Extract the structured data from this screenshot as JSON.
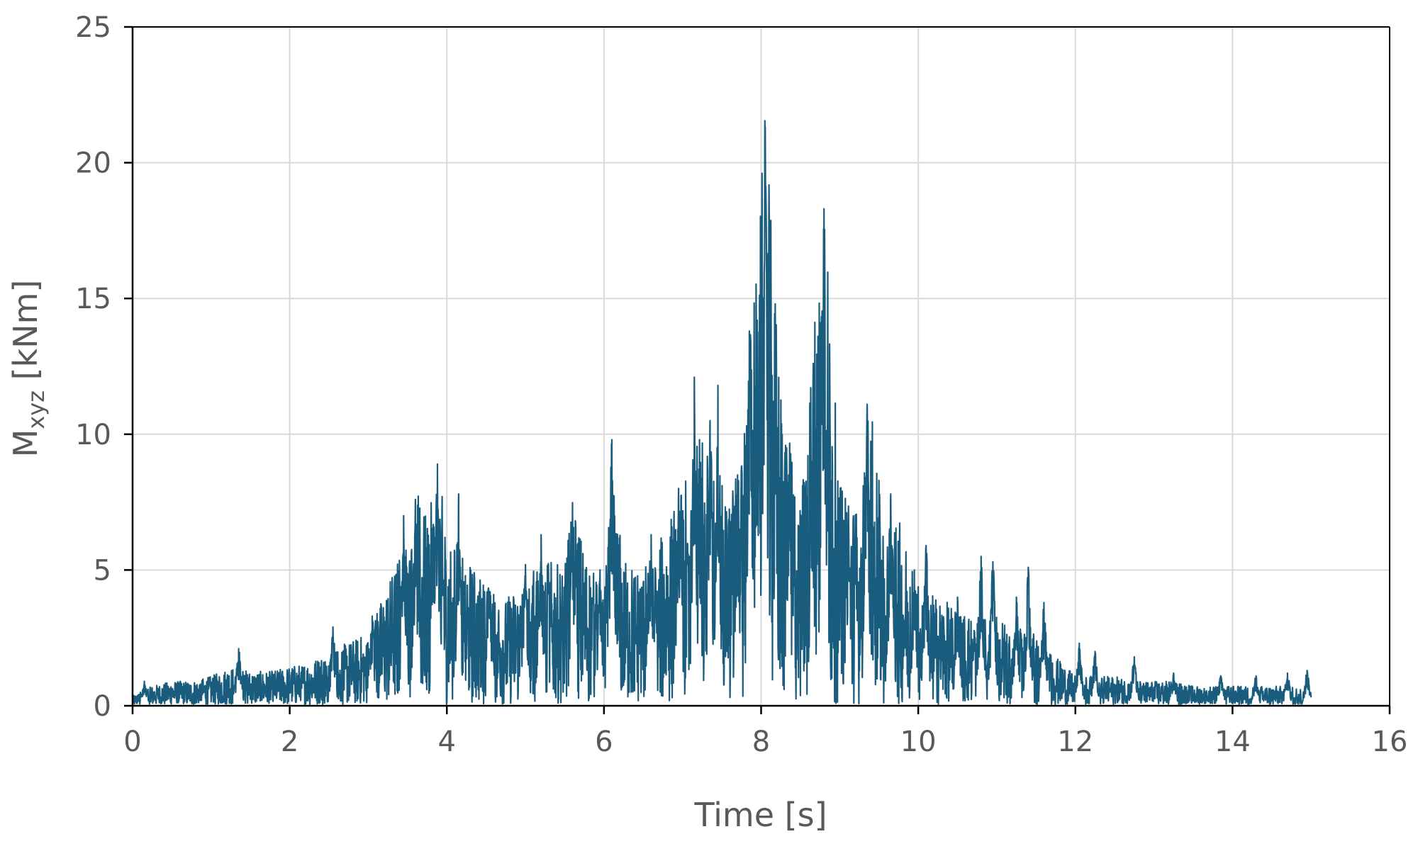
{
  "chart_data": {
    "type": "line",
    "title": "",
    "xlabel": "Time [s]",
    "ylabel": {
      "base": "M",
      "subscript": "xyz",
      "unit": " [kNm]"
    },
    "xlim": [
      0,
      16
    ],
    "ylim": [
      0,
      25
    ],
    "xticks": [
      0,
      2,
      4,
      6,
      8,
      10,
      12,
      14,
      16
    ],
    "yticks": [
      0,
      5,
      10,
      15,
      20,
      25
    ],
    "xtick_labels": [
      "0",
      "2",
      "4",
      "6",
      "8",
      "10",
      "12",
      "14",
      "16"
    ],
    "ytick_labels": [
      "0",
      "5",
      "10",
      "15",
      "20",
      "25"
    ],
    "grid": true,
    "legend": "none",
    "colors": {
      "series": "#1a5c7d",
      "grid": "#d9d9d9",
      "axis": "#000000",
      "text": "#595959"
    },
    "series": [
      {
        "x": [
          0.0,
          0.25,
          0.5,
          0.75,
          1.0,
          1.25,
          1.5,
          1.75,
          2.0,
          2.25,
          2.5,
          2.75,
          3.0,
          3.25,
          3.5,
          3.6,
          3.75,
          3.9,
          4.0,
          4.25,
          4.5,
          4.75,
          5.0,
          5.25,
          5.5,
          5.6,
          5.75,
          6.0,
          6.1,
          6.25,
          6.5,
          6.75,
          7.0,
          7.2,
          7.4,
          7.6,
          7.8,
          7.9,
          8.05,
          8.25,
          8.5,
          8.8,
          9.0,
          9.25,
          9.4,
          9.6,
          9.75,
          10.0,
          10.25,
          10.5,
          10.75,
          11.0,
          11.25,
          11.5,
          11.75,
          12.0,
          12.25,
          12.5,
          12.75,
          13.0,
          13.25,
          13.5,
          13.75,
          14.0,
          14.25,
          14.5,
          14.75,
          15.0
        ],
        "y": [
          0.2,
          0.4,
          0.5,
          0.5,
          0.6,
          0.8,
          0.7,
          0.7,
          0.8,
          0.9,
          1.1,
          1.3,
          1.5,
          2.5,
          3.5,
          4.5,
          3.8,
          4.8,
          3.5,
          3.0,
          2.5,
          2.2,
          2.6,
          3.0,
          2.8,
          4.2,
          3.2,
          2.2,
          4.8,
          3.0,
          2.8,
          3.5,
          4.5,
          5.5,
          5.0,
          4.2,
          6.0,
          8.5,
          12.0,
          6.5,
          4.0,
          10.5,
          4.5,
          4.0,
          6.0,
          3.2,
          3.8,
          2.5,
          2.2,
          2.0,
          1.8,
          1.8,
          1.6,
          1.5,
          1.0,
          0.6,
          0.6,
          0.6,
          0.5,
          0.5,
          0.5,
          0.4,
          0.4,
          0.4,
          0.4,
          0.4,
          0.4,
          0.3
        ],
        "peaks": [
          [
            0.15,
            0.9
          ],
          [
            1.35,
            2.1
          ],
          [
            2.55,
            2.9
          ],
          [
            3.05,
            3.3
          ],
          [
            3.45,
            7.0
          ],
          [
            3.6,
            7.6
          ],
          [
            3.88,
            8.9
          ],
          [
            4.15,
            7.8
          ],
          [
            4.55,
            4.2
          ],
          [
            5.0,
            5.2
          ],
          [
            5.2,
            6.3
          ],
          [
            5.6,
            7.4
          ],
          [
            5.95,
            5.0
          ],
          [
            6.1,
            9.8
          ],
          [
            6.6,
            6.3
          ],
          [
            6.95,
            8.0
          ],
          [
            7.15,
            12.1
          ],
          [
            7.35,
            10.5
          ],
          [
            7.45,
            11.8
          ],
          [
            7.7,
            8.5
          ],
          [
            7.85,
            13.8
          ],
          [
            7.95,
            14.2
          ],
          [
            8.05,
            20.4
          ],
          [
            8.35,
            8.5
          ],
          [
            8.65,
            9.0
          ],
          [
            8.8,
            18.3
          ],
          [
            9.1,
            6.2
          ],
          [
            9.35,
            11.1
          ],
          [
            9.65,
            7.8
          ],
          [
            9.95,
            5.0
          ],
          [
            10.1,
            5.9
          ],
          [
            10.5,
            4.0
          ],
          [
            10.8,
            5.5
          ],
          [
            10.95,
            5.3
          ],
          [
            11.25,
            4.0
          ],
          [
            11.4,
            5.1
          ],
          [
            11.6,
            3.8
          ],
          [
            12.05,
            2.3
          ],
          [
            12.25,
            2.0
          ],
          [
            12.75,
            1.8
          ],
          [
            13.25,
            1.2
          ],
          [
            13.85,
            1.1
          ],
          [
            14.3,
            1.1
          ],
          [
            14.7,
            1.2
          ],
          [
            14.95,
            1.3
          ]
        ],
        "noise_amplitude": 0.9
      }
    ]
  }
}
